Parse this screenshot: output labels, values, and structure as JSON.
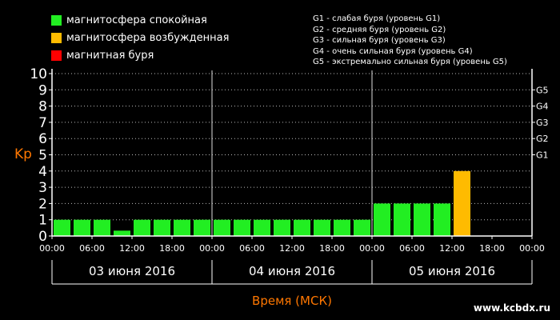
{
  "legend": [
    {
      "label": "магнитосфера спокойная",
      "color": "#22ee22"
    },
    {
      "label": "магнитосфера возбужденная",
      "color": "#ffbb00"
    },
    {
      "label": "магнитная буря",
      "color": "#ff0000"
    }
  ],
  "storm_levels_legend": [
    "G1 - слабая буря (уровень G1)",
    "G2 - средняя буря (уровень G2)",
    "G3 - сильная буря (уровень G3)",
    "G4 - очень сильная буря (уровень G4)",
    "G5 - экстремально сильная буря (уровень G5)"
  ],
  "watermark": "www.kcbdx.ru",
  "chart_data": {
    "type": "bar",
    "ylabel": "Kp",
    "xlabel": "Время (МСК)",
    "ylim": [
      0,
      10
    ],
    "yticks": [
      0,
      1,
      2,
      3,
      4,
      5,
      6,
      7,
      8,
      9,
      10
    ],
    "right_axis": [
      {
        "label": "G1",
        "kp": 5
      },
      {
        "label": "G2",
        "kp": 6
      },
      {
        "label": "G3",
        "kp": 7
      },
      {
        "label": "G4",
        "kp": 8
      },
      {
        "label": "G5",
        "kp": 9
      }
    ],
    "days": [
      "03 июня 2016",
      "04 июня 2016",
      "05 июня 2016"
    ],
    "xtick_labels": [
      "00:00",
      "06:00",
      "12:00",
      "18:00",
      "00:00",
      "06:00",
      "12:00",
      "18:00",
      "00:00",
      "06:00",
      "12:00",
      "18:00",
      "00:00"
    ],
    "grid": true,
    "series": [
      {
        "values": [
          1,
          1,
          1,
          0.33,
          1,
          1,
          1,
          1,
          1,
          1,
          1,
          1,
          1,
          1,
          1,
          1,
          2,
          2,
          2,
          2,
          4
        ],
        "colors": [
          "#22ee22",
          "#22ee22",
          "#22ee22",
          "#22ee22",
          "#22ee22",
          "#22ee22",
          "#22ee22",
          "#22ee22",
          "#22ee22",
          "#22ee22",
          "#22ee22",
          "#22ee22",
          "#22ee22",
          "#22ee22",
          "#22ee22",
          "#22ee22",
          "#22ee22",
          "#22ee22",
          "#22ee22",
          "#22ee22",
          "#ffbb00"
        ]
      }
    ]
  }
}
